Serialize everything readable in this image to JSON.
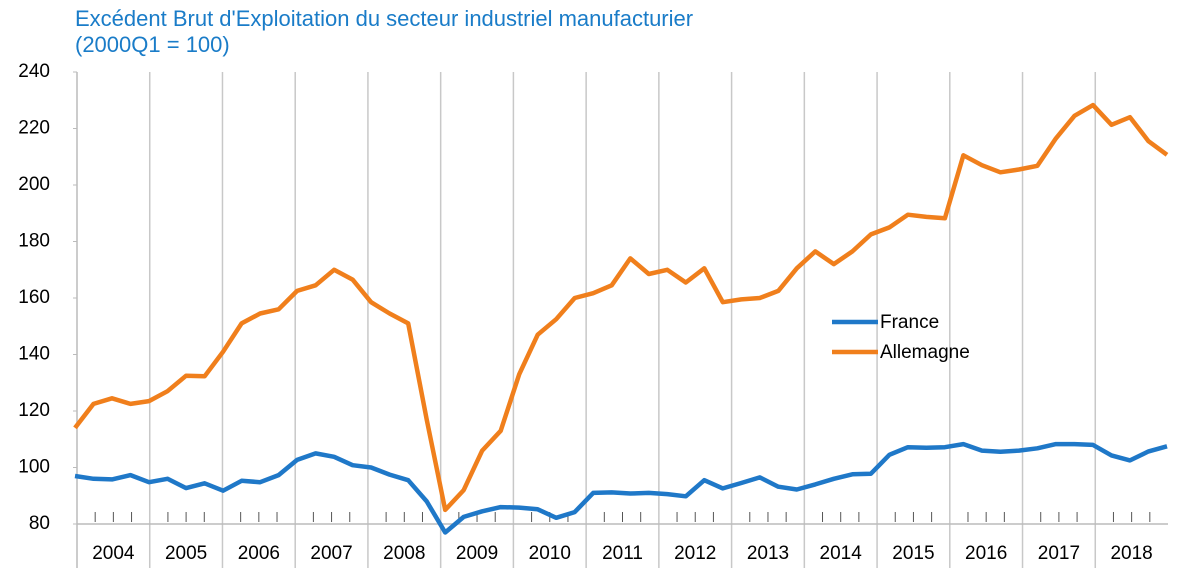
{
  "chart_data": {
    "type": "line",
    "title": "Excédent Brut d'Exploitation du secteur industriel manufacturier",
    "subtitle": "(2000Q1 = 100)",
    "categories": [
      "2004",
      null,
      null,
      null,
      "2005",
      null,
      null,
      null,
      "2006",
      null,
      null,
      null,
      "2007",
      null,
      null,
      null,
      "2008",
      null,
      null,
      null,
      "2009",
      null,
      null,
      null,
      "2010",
      null,
      null,
      null,
      "2011",
      null,
      null,
      null,
      "2012",
      null,
      null,
      null,
      "2013",
      null,
      null,
      null,
      "2014",
      null,
      null,
      null,
      "2015",
      null,
      null,
      null,
      "2016",
      null,
      null,
      null,
      "2017",
      null,
      null,
      null,
      "2018",
      null,
      null,
      null
    ],
    "series": [
      {
        "name": "France",
        "color": "#1f78c8",
        "values": [
          97,
          96,
          95.8,
          97.3,
          94.8,
          96,
          92.7,
          94.4,
          91.8,
          95.3,
          94.8,
          97.3,
          102.7,
          105,
          103.8,
          100.8,
          100,
          97.5,
          95.5,
          88,
          77,
          82.5,
          84.5,
          86,
          85.8,
          85.2,
          82.2,
          84.2,
          91,
          91.2,
          90.8,
          91,
          90.6,
          89.8,
          95.5,
          92.6,
          94.5,
          96.5,
          93.2,
          92.2,
          94,
          96,
          97.6,
          97.8,
          104.5,
          107.2,
          107,
          107.2,
          108.3,
          106,
          105.6,
          106,
          106.8,
          108.3,
          108.3,
          108,
          104.3,
          102.5,
          105.7,
          107.5
        ]
      },
      {
        "name": "Allemagne",
        "color": "#f07f1c",
        "values": [
          114,
          122.5,
          124.5,
          122.5,
          123.5,
          127,
          132.5,
          132.3,
          141,
          151,
          154.5,
          156,
          162.5,
          164.5,
          170,
          166.5,
          158.5,
          154.5,
          151,
          117,
          85,
          92,
          106,
          113,
          133,
          147,
          152.5,
          160,
          161.7,
          164.5,
          174,
          168.5,
          170,
          165.5,
          170.5,
          158.5,
          159.5,
          160,
          162.5,
          170.5,
          176.5,
          172,
          176.5,
          182.5,
          185,
          189.5,
          188.7,
          188.2,
          210.5,
          207,
          204.5,
          205.5,
          206.8,
          216.5,
          224.5,
          228.3,
          221.3,
          224,
          215.5,
          210.7
        ]
      }
    ],
    "ylim": [
      80,
      240
    ],
    "yticks": [
      80,
      100,
      120,
      140,
      160,
      180,
      200,
      220,
      240
    ],
    "grid": true,
    "legend": "right"
  }
}
